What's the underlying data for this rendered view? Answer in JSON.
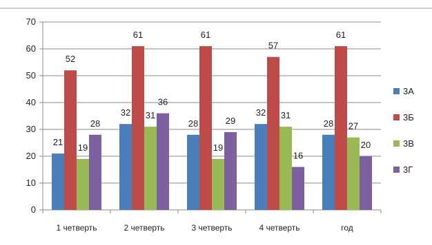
{
  "chart_data": {
    "type": "bar",
    "title": "",
    "xlabel": "",
    "ylabel": "",
    "ylim": [
      0,
      70
    ],
    "yticks": [
      0,
      10,
      20,
      30,
      40,
      50,
      60,
      70
    ],
    "grid": true,
    "legend_position": "right",
    "categories": [
      "1 четверть",
      "2 четверть",
      "3 четверть",
      "4 четверть",
      "год"
    ],
    "series": [
      {
        "name": "3А",
        "color": "#4a7ebb",
        "values": [
          21,
          32,
          28,
          32,
          28
        ]
      },
      {
        "name": "3Б",
        "color": "#be4b48",
        "values": [
          52,
          61,
          61,
          57,
          61
        ]
      },
      {
        "name": "3В",
        "color": "#98b954",
        "values": [
          19,
          31,
          19,
          31,
          27
        ]
      },
      {
        "name": "3Г",
        "color": "#7d60a0",
        "values": [
          28,
          36,
          29,
          16,
          20
        ]
      }
    ]
  }
}
